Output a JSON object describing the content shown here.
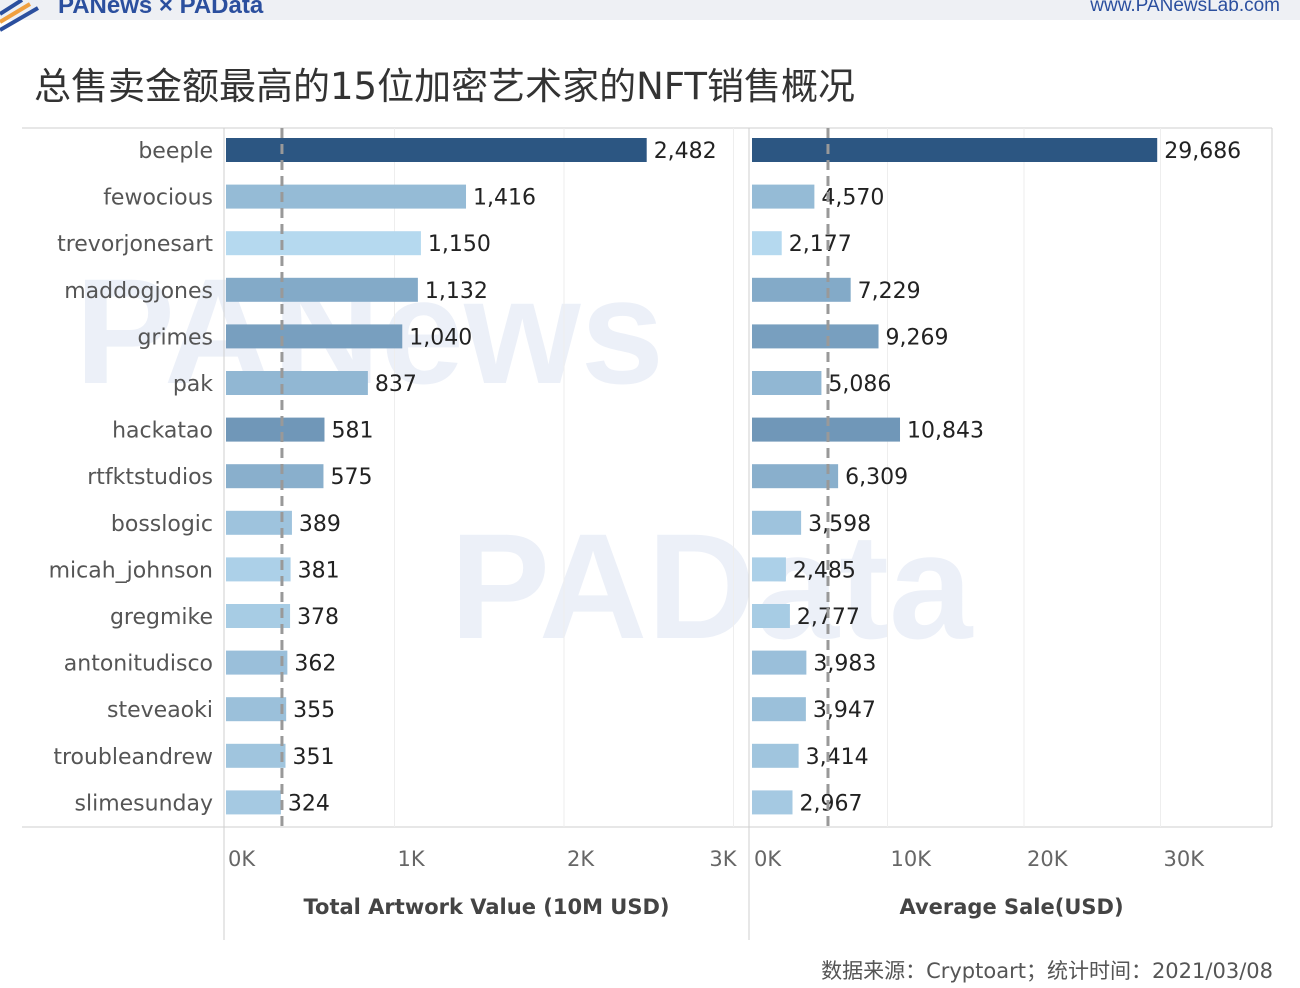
{
  "header": {
    "brand": "PANews × PAData",
    "site": "www.PANewsLab.com"
  },
  "watermarks": [
    "PANews",
    "PAData"
  ],
  "footer": "数据来源：Cryptoart；统计时间：2021/03/08",
  "chart_data": [
    {
      "type": "bar",
      "orientation": "horizontal",
      "title": "总售卖金额最高的15位加密艺术家的NFT销售概况",
      "categories": [
        "beeple",
        "fewocious",
        "trevorjonesart",
        "maddogjones",
        "grimes",
        "pak",
        "hackatao",
        "rtfktstudios",
        "bosslogic",
        "micah_johnson",
        "gregmike",
        "antonitudisco",
        "steveaoki",
        "troubleandrew",
        "slimesunday"
      ],
      "values": [
        2482,
        1416,
        1150,
        1132,
        1040,
        837,
        581,
        575,
        389,
        381,
        378,
        362,
        355,
        351,
        324
      ],
      "labels": [
        "2,482",
        "1,416",
        "1,150",
        "1,132",
        "1,040",
        "837",
        "581",
        "575",
        "389",
        "381",
        "378",
        "362",
        "355",
        "351",
        "324"
      ],
      "xlabel": "Total Artwork Value (10M USD)",
      "xlim": [
        0,
        3000
      ],
      "ticks": [
        0,
        1000,
        2000,
        3000
      ],
      "tick_labels": [
        "0K",
        "1K",
        "2K",
        "3K"
      ],
      "reference_line": 336,
      "grid": true
    },
    {
      "type": "bar",
      "orientation": "horizontal",
      "categories": [
        "beeple",
        "fewocious",
        "trevorjonesart",
        "maddogjones",
        "grimes",
        "pak",
        "hackatao",
        "rtfktstudios",
        "bosslogic",
        "micah_johnson",
        "gregmike",
        "antonitudisco",
        "steveaoki",
        "troubleandrew",
        "slimesunday"
      ],
      "values": [
        29686,
        4570,
        2177,
        7229,
        9269,
        5086,
        10843,
        6309,
        3598,
        2485,
        2777,
        3983,
        3947,
        3414,
        2967
      ],
      "labels": [
        "29,686",
        "4,570",
        "2,177",
        "7,229",
        "9,269",
        "5,086",
        "10,843",
        "6,309",
        "3,598",
        "2,485",
        "2,777",
        "3,983",
        "3,947",
        "3,414",
        "2,967"
      ],
      "xlabel": "Average Sale(USD)",
      "xlim": [
        0,
        38000
      ],
      "ticks": [
        0,
        10000,
        20000,
        30000
      ],
      "tick_labels": [
        "0K",
        "10K",
        "20K",
        "30K"
      ],
      "reference_line": 5640,
      "grid": true
    }
  ],
  "colors": {
    "light": "#b5d9ef",
    "dark": "#2c5682",
    "axis": "#cfcfcf",
    "grid": "#eeeeee",
    "ref": "#999999"
  }
}
